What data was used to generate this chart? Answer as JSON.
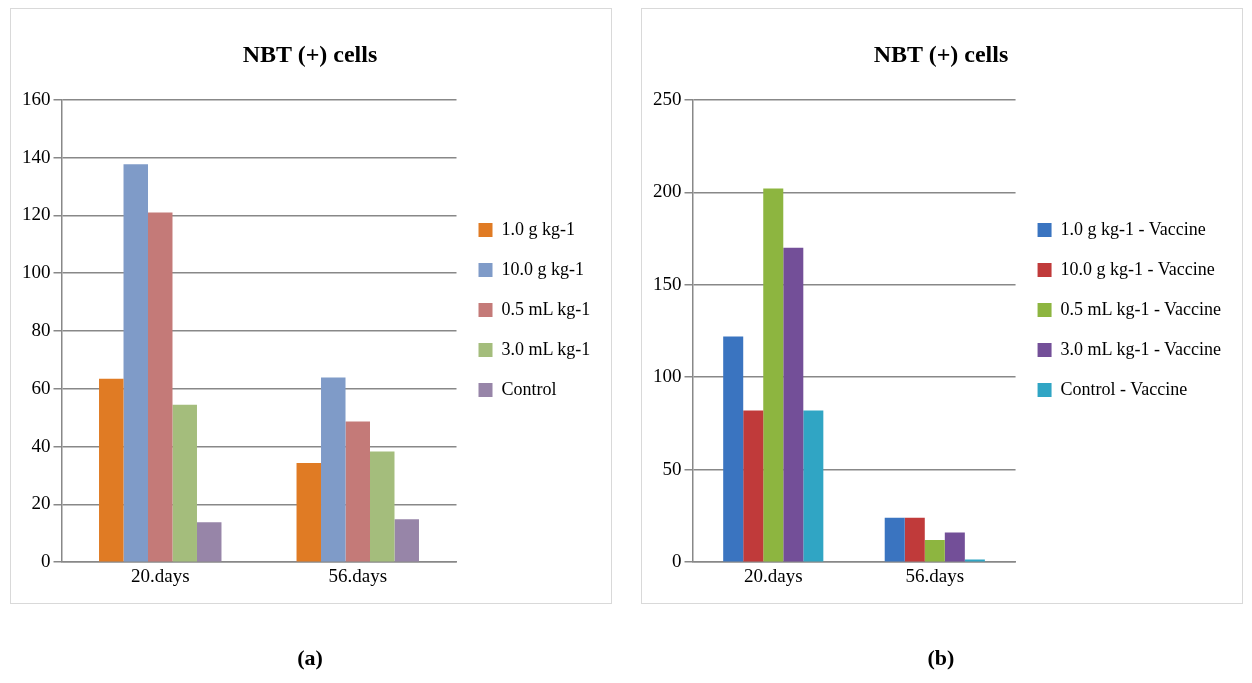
{
  "chart_data": [
    {
      "type": "bar",
      "title": "NBT (+) cells",
      "categories": [
        "20.days",
        "56.days"
      ],
      "series": [
        {
          "name": "1.0 g kg-1",
          "color": "#e07b24",
          "values": [
            63.5,
            34.3
          ]
        },
        {
          "name": "10.0 g kg-1",
          "color": "#7f9bc8",
          "values": [
            137.7,
            63.9
          ]
        },
        {
          "name": "0.5 mL kg-1",
          "color": "#c47a78",
          "values": [
            121,
            48.7
          ]
        },
        {
          "name": "3.0 mL kg-1",
          "color": "#a4bd7c",
          "values": [
            54.5,
            38.3
          ]
        },
        {
          "name": "Control",
          "color": "#9785a8",
          "values": [
            13.8,
            14.9
          ]
        }
      ],
      "ylim": [
        0,
        160
      ],
      "yticks": [
        0,
        20,
        40,
        60,
        80,
        100,
        120,
        140,
        160
      ],
      "grid": "y",
      "legend": "right",
      "annotations": [
        "(a)"
      ]
    },
    {
      "type": "bar",
      "title": "NBT (+) cells",
      "categories": [
        "20.days",
        "56.days"
      ],
      "series": [
        {
          "name": "1.0 g kg-1 - Vaccine",
          "color": "#3a74c0",
          "values": [
            122,
            24
          ]
        },
        {
          "name": "10.0 g kg-1 - Vaccine",
          "color": "#c03a3a",
          "values": [
            82,
            24
          ]
        },
        {
          "name": "0.5 mL kg-1 - Vaccine",
          "color": "#8db540",
          "values": [
            202,
            12
          ]
        },
        {
          "name": "3.0 mL kg-1 - Vaccine",
          "color": "#734f98",
          "values": [
            170,
            16
          ]
        },
        {
          "name": "Control - Vaccine",
          "color": "#30a5c4",
          "values": [
            82,
            1.5
          ]
        }
      ],
      "ylim": [
        0,
        250
      ],
      "yticks": [
        0,
        50,
        100,
        150,
        200,
        250
      ],
      "grid": "y",
      "legend": "right",
      "annotations": [
        "(b)"
      ]
    }
  ]
}
